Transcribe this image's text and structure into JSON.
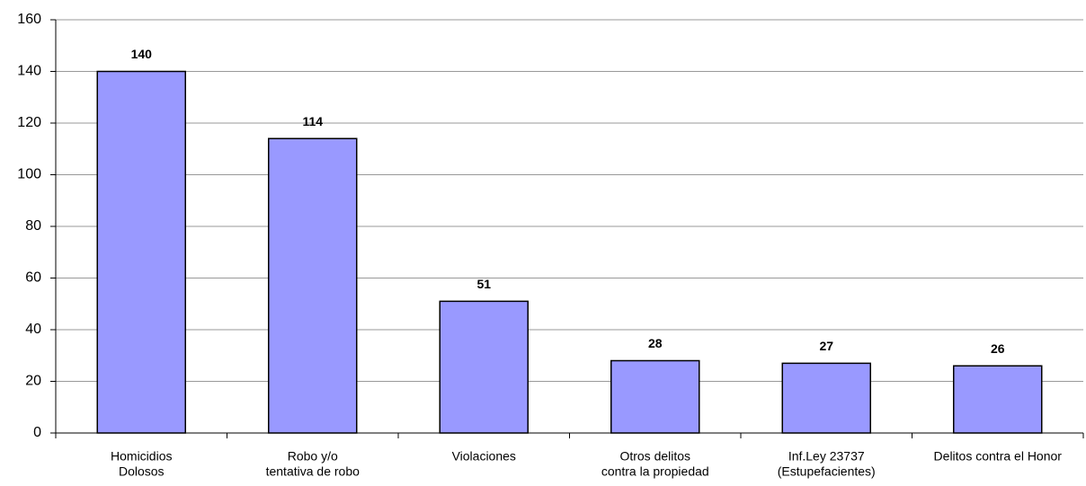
{
  "chart_data": {
    "type": "bar",
    "categories": [
      [
        "Homicidios",
        "Dolosos"
      ],
      [
        "Robo y/o",
        "tentativa de robo"
      ],
      [
        "Violaciones"
      ],
      [
        "Otros delitos",
        "contra la propiedad"
      ],
      [
        "Inf.Ley 23737",
        "(Estupefacientes)"
      ],
      [
        "Delitos contra el Honor"
      ]
    ],
    "values": [
      140,
      114,
      51,
      28,
      27,
      26
    ],
    "color": "#9999ff",
    "ylim": [
      0,
      160
    ],
    "yticks": [
      0,
      20,
      40,
      60,
      80,
      100,
      120,
      140,
      160
    ],
    "grid": true
  }
}
